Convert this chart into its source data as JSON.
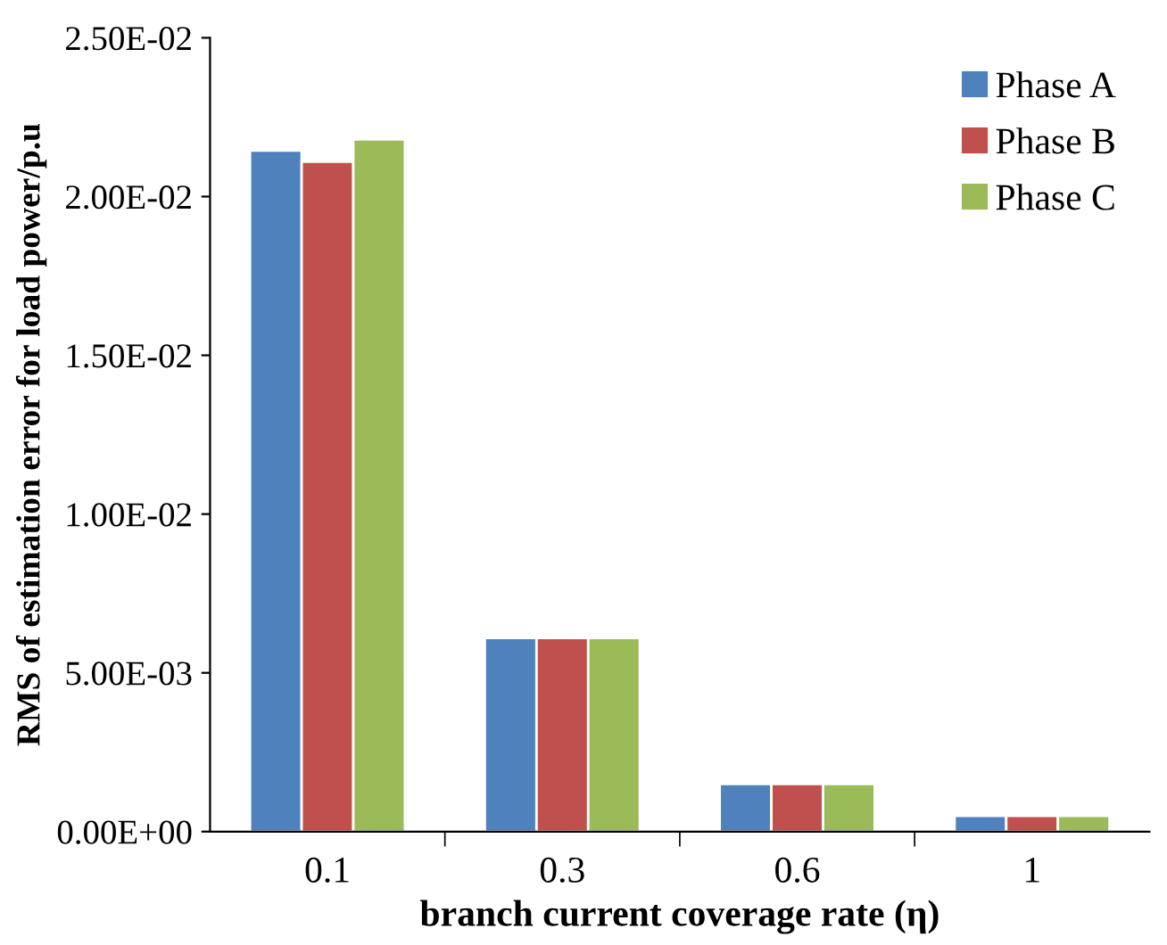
{
  "chart_data": {
    "type": "bar",
    "categories": [
      "0.1",
      "0.3",
      "0.6",
      "1"
    ],
    "series": [
      {
        "name": "Phase A",
        "color": "#4f81bd",
        "values": [
          0.02145,
          0.0061,
          0.0015,
          0.0005
        ]
      },
      {
        "name": "Phase B",
        "color": "#c0504d",
        "values": [
          0.0211,
          0.0061,
          0.0015,
          0.0005
        ]
      },
      {
        "name": "Phase C",
        "color": "#9bbb59",
        "values": [
          0.0218,
          0.0061,
          0.0015,
          0.0005
        ]
      }
    ],
    "xlabel": "branch current coverage rate (η)",
    "ylabel": "RMS of estimation error for load power/p.u",
    "ylim": [
      0,
      0.025
    ],
    "yticks": [
      {
        "value": 0,
        "label": "0.00E+00"
      },
      {
        "value": 0.005,
        "label": "5.00E-03"
      },
      {
        "value": 0.01,
        "label": "1.00E-02"
      },
      {
        "value": 0.015,
        "label": "1.50E-02"
      },
      {
        "value": 0.02,
        "label": "2.00E-02"
      },
      {
        "value": 0.025,
        "label": "2.50E-02"
      }
    ],
    "grid": false,
    "legend": "top right"
  }
}
